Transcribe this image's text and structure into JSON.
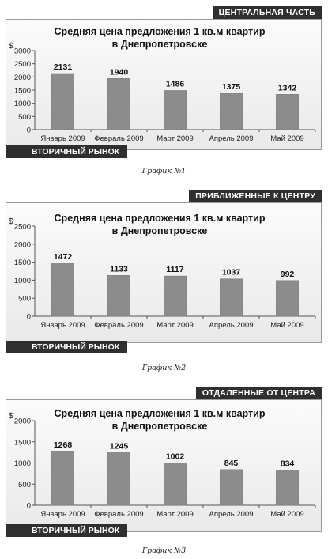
{
  "charts": [
    {
      "region_tag": "ЦЕНТРАЛЬНАЯ ЧАСТЬ",
      "market_tag": "ВТОРИЧНЫЙ РЫНОК",
      "caption": "График №1",
      "chart_data": {
        "type": "bar",
        "title": "Средняя цена предложения 1 кв.м квартир",
        "subtitle": "в Днепропетровске",
        "ylabel": "$",
        "categories": [
          "Январь 2009",
          "Февраль 2009",
          "Март 2009",
          "Апрель 2009",
          "Май 2009"
        ],
        "values": [
          2131,
          1940,
          1486,
          1375,
          1342
        ],
        "ylim": [
          0,
          3000
        ],
        "yticks": [
          0,
          500,
          1000,
          1500,
          2000,
          2500,
          3000
        ],
        "grid": false,
        "bar_color": "#8c8c8c"
      }
    },
    {
      "region_tag": "ПРИБЛИЖЕННЫЕ К ЦЕНТРУ",
      "market_tag": "ВТОРИЧНЫЙ РЫНОК",
      "caption": "График №2",
      "chart_data": {
        "type": "bar",
        "title": "Средняя цена предложения 1 кв.м  квартир",
        "subtitle": "в Днепропетровске",
        "ylabel": "$",
        "categories": [
          "Январь 2009",
          "Февраль 2009",
          "Март 2009",
          "Апрель 2009",
          "Май 2009"
        ],
        "values": [
          1472,
          1133,
          1117,
          1037,
          992
        ],
        "ylim": [
          0,
          2500
        ],
        "yticks": [
          0,
          500,
          1000,
          1500,
          2000,
          2500
        ],
        "grid": false,
        "bar_color": "#8c8c8c"
      }
    },
    {
      "region_tag": "ОТДАЛЕННЫЕ ОТ ЦЕНТРА",
      "market_tag": "ВТОРИЧНЫЙ РЫНОК",
      "caption": "График №3",
      "chart_data": {
        "type": "bar",
        "title": "Средняя цена предложения 1 кв.м квартир",
        "subtitle": "в Днепропетровске",
        "ylabel": "$",
        "categories": [
          "Январь 2009",
          "Февраль 2009",
          "Март 2009",
          "Апрель 2009",
          "Май 2009"
        ],
        "values": [
          1268,
          1245,
          1002,
          845,
          834
        ],
        "ylim": [
          0,
          2000
        ],
        "yticks": [
          0,
          500,
          1000,
          1500,
          2000
        ],
        "grid": false,
        "bar_color": "#8c8c8c"
      }
    }
  ]
}
